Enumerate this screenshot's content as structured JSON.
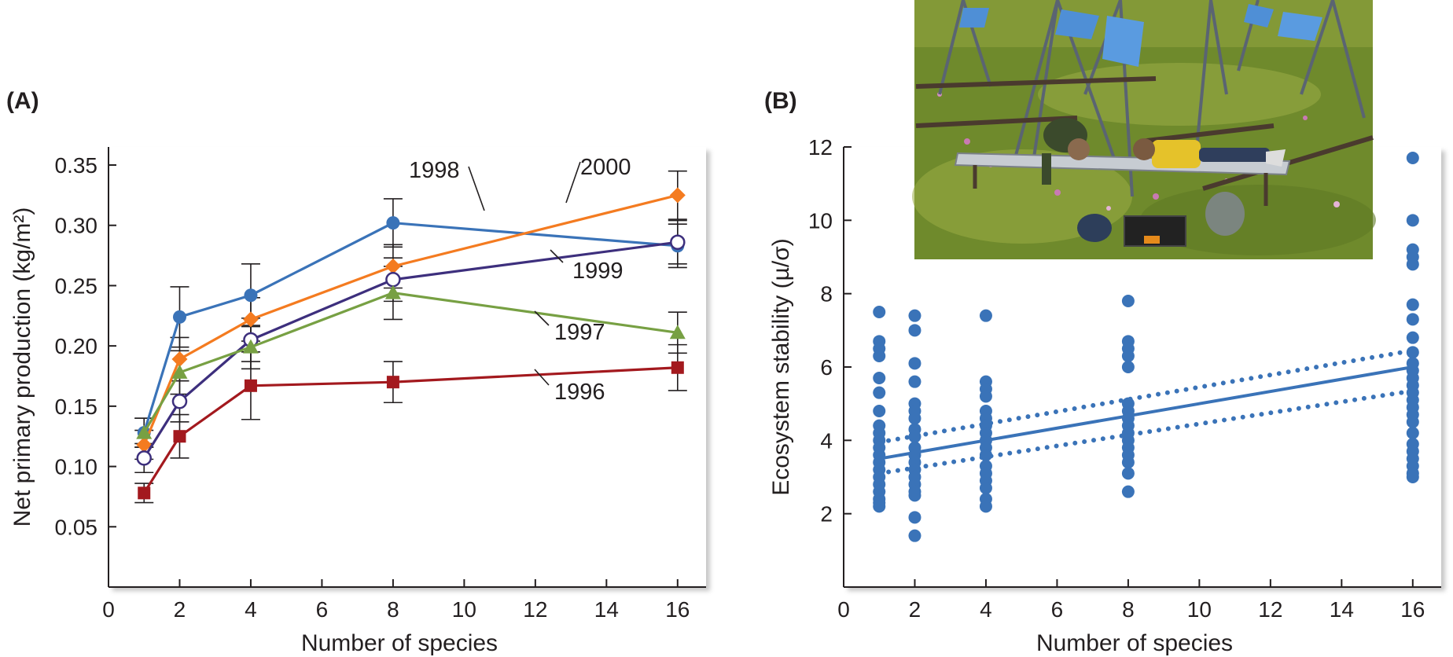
{
  "chart_data": [
    {
      "panel": "(A)",
      "type": "line",
      "xlabel": "Number of species",
      "ylabel": "Net primary production (kg/m²)",
      "xticks": [
        "0",
        "2",
        "4",
        "6",
        "8",
        "10",
        "12",
        "14",
        "16"
      ],
      "yticks": [
        "0.05",
        "0.10",
        "0.15",
        "0.20",
        "0.25",
        "0.30",
        "0.35"
      ],
      "xlim": [
        0,
        16.8
      ],
      "ylim": [
        0.0,
        0.365
      ],
      "grid": false,
      "legend": "none (series labeled inline)",
      "x": [
        1,
        2,
        4,
        8,
        16
      ],
      "series": [
        {
          "name": "1998",
          "color": "#3a73b8",
          "marker": "circle",
          "values": [
            0.128,
            0.224,
            0.242,
            0.302,
            0.283
          ],
          "error": [
            0.012,
            0.025,
            0.026,
            0.02,
            0.018
          ]
        },
        {
          "name": "2000",
          "color": "#f47b20",
          "marker": "diamond",
          "values": [
            0.118,
            0.189,
            0.222,
            0.266,
            0.325
          ],
          "error": [
            0.012,
            0.018,
            0.018,
            0.018,
            0.02
          ]
        },
        {
          "name": "1999",
          "color": "#3d2f7d",
          "marker": "open-circle",
          "values": [
            0.107,
            0.154,
            0.205,
            0.255,
            0.286
          ],
          "error": [
            0.012,
            0.017,
            0.018,
            0.018,
            0.018
          ]
        },
        {
          "name": "1997",
          "color": "#77a043",
          "marker": "triangle",
          "values": [
            0.128,
            0.178,
            0.199,
            0.244,
            0.211
          ],
          "error": [
            0.012,
            0.018,
            0.018,
            0.022,
            0.017
          ]
        },
        {
          "name": "1996",
          "color": "#a3191e",
          "marker": "square",
          "values": [
            0.078,
            0.125,
            0.167,
            0.17,
            0.182
          ],
          "error": [
            0.008,
            0.018,
            0.028,
            0.017,
            0.019
          ]
        }
      ]
    },
    {
      "panel": "(B)",
      "type": "scatter",
      "xlabel": "Number of species",
      "ylabel": "Ecosystem stability (µ/σ)",
      "xticks": [
        "0",
        "2",
        "4",
        "6",
        "8",
        "10",
        "12",
        "14",
        "16"
      ],
      "yticks": [
        "2",
        "4",
        "6",
        "8",
        "10",
        "12"
      ],
      "xlim": [
        0,
        16.8
      ],
      "ylim": [
        0,
        12
      ],
      "grid": false,
      "color": "#3a73b8",
      "points": [
        {
          "x": 1,
          "y": [
            7.5,
            6.7,
            6.5,
            6.3,
            5.7,
            5.3,
            4.8,
            4.4,
            4.2,
            4.0,
            3.8,
            3.6,
            3.4,
            3.2,
            3.0,
            2.8,
            2.6,
            2.4,
            2.3,
            2.2
          ]
        },
        {
          "x": 2,
          "y": [
            7.4,
            7.0,
            6.1,
            5.6,
            5.0,
            4.8,
            4.6,
            4.3,
            4.1,
            3.8,
            3.6,
            3.4,
            3.2,
            3.0,
            2.8,
            2.6,
            2.5,
            1.9,
            1.4
          ]
        },
        {
          "x": 4,
          "y": [
            7.4,
            5.6,
            5.4,
            5.2,
            4.8,
            4.6,
            4.4,
            4.2,
            4.0,
            3.8,
            3.6,
            3.3,
            3.1,
            2.9,
            2.7,
            2.4,
            2.2
          ]
        },
        {
          "x": 8,
          "y": [
            7.8,
            6.7,
            6.5,
            6.3,
            6.0,
            5.0,
            4.8,
            4.6,
            4.4,
            4.2,
            4.0,
            3.8,
            3.6,
            3.4,
            3.1,
            2.6
          ]
        },
        {
          "x": 16,
          "y": [
            11.7,
            10.0,
            9.2,
            9.0,
            8.8,
            7.7,
            7.3,
            6.8,
            6.4,
            6.1,
            5.9,
            5.7,
            5.5,
            5.3,
            5.1,
            4.9,
            4.7,
            4.5,
            4.2,
            3.9,
            3.7,
            3.5,
            3.3,
            3.1,
            3.0
          ]
        }
      ],
      "fit": {
        "x": [
          1,
          16
        ],
        "y": [
          3.5,
          6.0
        ],
        "style": "solid"
      },
      "ci_upper": {
        "x": [
          1,
          16
        ],
        "y": [
          3.95,
          6.45
        ],
        "style": "dotted"
      },
      "ci_lower": {
        "x": [
          1,
          16
        ],
        "y": [
          3.1,
          5.35
        ],
        "style": "dotted"
      }
    }
  ],
  "photo": {
    "subject": "field-experiment-photo",
    "colors": {
      "grass": "#6f8a2c",
      "grass_light": "#9bad45",
      "panel": "#4f8fd6",
      "frame": "#5a6472",
      "shirt": "#e5c22a"
    }
  }
}
